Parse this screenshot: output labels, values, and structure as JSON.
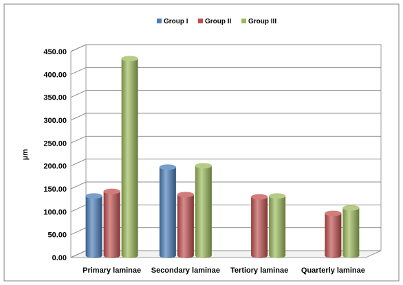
{
  "chart_data": {
    "type": "bar",
    "title": "",
    "xlabel": "",
    "ylabel": "µm",
    "ylim": [
      0,
      450
    ],
    "ytick_step": 50,
    "ytick_labels": [
      "0.00",
      "50.00",
      "100.00",
      "150.00",
      "200.00",
      "250.00",
      "300.00",
      "350.00",
      "400.00",
      "450.00"
    ],
    "grid": true,
    "legend_position": "top",
    "categories": [
      "Primary laminae",
      "Secondary laminae",
      "Tertiory laminae",
      "Quarterly  laminae"
    ],
    "series": [
      {
        "name": "Group I",
        "color": "#4a7ebb",
        "values": [
          130,
          193,
          null,
          null
        ]
      },
      {
        "name": "Group II",
        "color": "#c0504d",
        "values": [
          140,
          133,
          128,
          92
        ]
      },
      {
        "name": "Group III",
        "color": "#9bbb59",
        "values": [
          430,
          196,
          130,
          104
        ]
      }
    ]
  }
}
